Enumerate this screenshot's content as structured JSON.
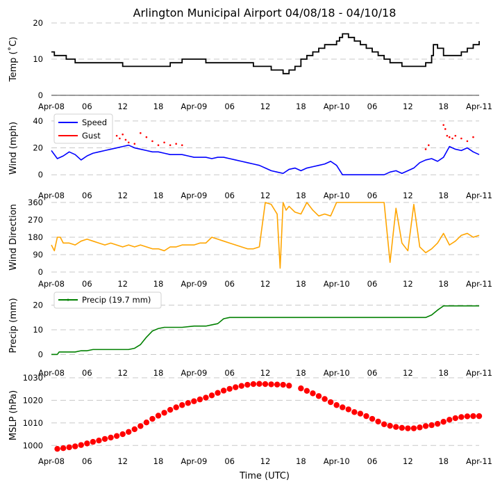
{
  "title": "Arlington Municipal Airport 04/08/18 - 04/10/18",
  "xlabel": "Time (UTC)",
  "chart_data": [
    {
      "id": "temp",
      "type": "line",
      "ylabel": "Temp ($^\\circ$C)",
      "ylabel_display": "Temp (˚C)",
      "ylim": [
        0,
        20
      ],
      "yticks": [
        0,
        10,
        20
      ],
      "xticks": [
        "Apr-08",
        "06",
        "12",
        "18",
        "Apr-09",
        "06",
        "12",
        "18",
        "Apr-10",
        "06",
        "12",
        "18",
        "Apr-11"
      ],
      "series": [
        {
          "name": "Temp",
          "color": "#000000",
          "style": "step",
          "x": [
            0,
            0.5,
            1,
            2,
            2.5,
            3,
            4,
            5,
            6,
            9,
            10,
            12,
            14,
            16,
            18,
            19,
            20,
            21,
            22,
            24,
            26,
            27,
            28,
            30,
            32,
            34,
            35,
            36,
            37,
            38,
            39,
            40,
            41,
            42,
            43,
            44,
            45,
            46,
            47,
            48,
            48.5,
            49,
            50,
            51,
            52,
            53,
            54,
            55,
            56,
            57,
            58,
            59,
            60,
            61,
            62,
            63,
            64,
            64.3,
            65,
            66,
            67,
            68,
            69,
            70,
            71,
            72
          ],
          "values": [
            12,
            11,
            11,
            11,
            10,
            10,
            9,
            9,
            9,
            9,
            9,
            8,
            8,
            8,
            8,
            8,
            9,
            9,
            10,
            10,
            9,
            9,
            9,
            9,
            9,
            8,
            8,
            8,
            7,
            7,
            6,
            7,
            8,
            10,
            11,
            12,
            13,
            14,
            14,
            15,
            16,
            17,
            16,
            15,
            14,
            13,
            12,
            11,
            10,
            9,
            9,
            8,
            8,
            8,
            8,
            9,
            11,
            14,
            13,
            11,
            11,
            11,
            12,
            13,
            14,
            15
          ]
        }
      ]
    },
    {
      "id": "wind",
      "type": "line",
      "ylabel": "Wind (mph)",
      "ylim": [
        -3,
        42
      ],
      "yticks": [
        0,
        20,
        40
      ],
      "xticks": [
        "Apr-08",
        "06",
        "12",
        "18",
        "Apr-09",
        "06",
        "12",
        "18",
        "Apr-10",
        "06",
        "12",
        "18",
        "Apr-11"
      ],
      "series": [
        {
          "name": "Speed",
          "color": "#0000ff",
          "style": "line",
          "x": [
            0,
            1,
            2,
            3,
            4,
            5,
            6,
            7,
            8,
            9,
            10,
            11,
            12,
            13,
            14,
            15,
            16,
            17,
            18,
            19,
            20,
            21,
            22,
            23,
            24,
            25,
            26,
            27,
            28,
            29,
            30,
            31,
            32,
            33,
            34,
            35,
            36,
            37,
            38,
            39,
            40,
            41,
            42,
            43,
            44,
            45,
            46,
            47,
            48,
            49,
            50,
            51,
            52,
            53,
            54,
            55,
            56,
            57,
            58,
            59,
            60,
            61,
            62,
            63,
            64,
            65,
            66,
            67,
            68,
            69,
            70,
            71,
            72
          ],
          "values": [
            18,
            12,
            14,
            17,
            15,
            11,
            14,
            16,
            17,
            18,
            19,
            20,
            21,
            22,
            20,
            19,
            18,
            17,
            17,
            16,
            15,
            15,
            15,
            14,
            13,
            13,
            13,
            12,
            13,
            13,
            12,
            11,
            10,
            9,
            8,
            7,
            5,
            3,
            2,
            1,
            4,
            5,
            3,
            5,
            6,
            7,
            8,
            10,
            7,
            0,
            0,
            0,
            0,
            0,
            0,
            0,
            0,
            2,
            3,
            1,
            3,
            5,
            9,
            11,
            12,
            10,
            13,
            21,
            19,
            18,
            20,
            17,
            15
          ]
        },
        {
          "name": "Gust",
          "color": "#ff0000",
          "style": "dots",
          "x": [
            11,
            11.5,
            12,
            12.5,
            13,
            14,
            15,
            16,
            17,
            18,
            19,
            20,
            21,
            22,
            63,
            63.5,
            66,
            66.3,
            66.6,
            67,
            67.5,
            68,
            69,
            70,
            71
          ],
          "values": [
            29,
            27,
            30,
            26,
            24,
            23,
            31,
            28,
            25,
            22,
            24,
            22,
            23,
            22,
            19,
            22,
            37,
            34,
            29,
            28,
            27,
            29,
            27,
            25,
            28
          ]
        }
      ],
      "legend": [
        "Speed",
        "Gust"
      ]
    },
    {
      "id": "dir",
      "type": "line",
      "ylabel": "Wind Direction",
      "ylim": [
        0,
        360
      ],
      "yticks": [
        0,
        90,
        180,
        270,
        360
      ],
      "xticks": [
        "Apr-08",
        "06",
        "12",
        "18",
        "Apr-09",
        "06",
        "12",
        "18",
        "Apr-10",
        "06",
        "12",
        "18",
        "Apr-11"
      ],
      "series": [
        {
          "name": "Direction",
          "color": "#ffa500",
          "style": "line",
          "x": [
            0,
            0.5,
            1,
            1.5,
            2,
            3,
            4,
            5,
            6,
            7,
            8,
            9,
            10,
            11,
            12,
            13,
            14,
            15,
            16,
            17,
            18,
            19,
            20,
            21,
            22,
            23,
            24,
            25,
            26,
            27,
            28,
            29,
            30,
            31,
            32,
            33,
            34,
            35,
            36,
            37,
            38,
            38.5,
            39,
            39.5,
            40,
            41,
            42,
            43,
            44,
            45,
            46,
            47,
            48,
            49,
            50,
            51,
            52,
            53,
            54,
            55,
            56,
            57,
            58,
            59,
            60,
            61,
            62,
            63,
            64,
            65,
            66,
            67,
            68,
            69,
            70,
            71,
            72
          ],
          "values": [
            140,
            110,
            180,
            180,
            150,
            150,
            140,
            160,
            170,
            160,
            150,
            140,
            150,
            140,
            130,
            140,
            130,
            140,
            130,
            120,
            120,
            110,
            130,
            130,
            140,
            140,
            140,
            150,
            150,
            180,
            170,
            160,
            150,
            140,
            130,
            120,
            120,
            130,
            360,
            350,
            300,
            20,
            360,
            320,
            340,
            310,
            300,
            360,
            320,
            290,
            300,
            290,
            360,
            360,
            360,
            360,
            360,
            360,
            360,
            360,
            360,
            50,
            330,
            150,
            110,
            350,
            130,
            100,
            120,
            150,
            200,
            140,
            160,
            190,
            200,
            180,
            190
          ]
        }
      ]
    },
    {
      "id": "precip",
      "type": "line",
      "ylabel": "Precip (mm)",
      "ylim": [
        -1,
        23
      ],
      "yticks": [
        0,
        10,
        20
      ],
      "xticks": [
        "Apr-08",
        "06",
        "12",
        "18",
        "Apr-09",
        "06",
        "12",
        "18",
        "Apr-10",
        "06",
        "12",
        "18",
        "Apr-11"
      ],
      "series": [
        {
          "name": "Precip (19.7 mm)",
          "color": "#008000",
          "style": "line",
          "x": [
            0,
            1,
            1.3,
            2,
            3,
            4,
            5,
            6,
            7,
            8,
            9,
            10,
            11,
            12,
            13,
            14,
            15,
            16,
            17,
            18,
            19,
            20,
            21,
            22,
            24,
            25,
            26,
            27,
            28,
            29,
            30,
            31,
            32,
            34,
            36,
            38,
            40,
            42,
            44,
            46,
            48,
            50,
            52,
            54,
            56,
            58,
            60,
            62,
            63,
            64,
            64.5,
            65,
            66,
            67,
            68,
            70,
            72
          ],
          "values": [
            0,
            0,
            1,
            1,
            1,
            1,
            1.5,
            1.5,
            2,
            2,
            2,
            2,
            2,
            2,
            2,
            2.5,
            4,
            7,
            9.5,
            10.5,
            11,
            11,
            11,
            11,
            11.5,
            11.5,
            11.5,
            12,
            12.5,
            14.5,
            15,
            15,
            15,
            15,
            15,
            15,
            15,
            15,
            15,
            15,
            15,
            15,
            15,
            15,
            15,
            15,
            15,
            15,
            15,
            16,
            17,
            18,
            19.7,
            19.7,
            19.7,
            19.7,
            19.7
          ]
        }
      ],
      "legend": [
        "Precip (19.7 mm)"
      ]
    },
    {
      "id": "mslp",
      "type": "scatter",
      "ylabel": "MSLP (hPa)",
      "ylim": [
        993,
        1030
      ],
      "yticks": [
        1000,
        1010,
        1020,
        1030
      ],
      "xticks": [
        "Apr-08",
        "06",
        "12",
        "18",
        "Apr-09",
        "06",
        "12",
        "18",
        "Apr-10",
        "06",
        "12",
        "18",
        "Apr-11"
      ],
      "series": [
        {
          "name": "MSLP",
          "color": "#ff0000",
          "style": "markers",
          "x": [
            1,
            2,
            3,
            4,
            5,
            6,
            7,
            8,
            9,
            10,
            11,
            12,
            13,
            14,
            15,
            16,
            17,
            18,
            19,
            20,
            21,
            22,
            23,
            24,
            25,
            26,
            27,
            28,
            29,
            30,
            31,
            32,
            33,
            34,
            35,
            36,
            37,
            38,
            39,
            40,
            42,
            43,
            44,
            45,
            46,
            47,
            48,
            49,
            50,
            51,
            52,
            53,
            54,
            55,
            56,
            57,
            58,
            59,
            60,
            61,
            62,
            63,
            64,
            65,
            66,
            67,
            68,
            69,
            70,
            71,
            72
          ],
          "values": [
            998.5,
            998.8,
            999.2,
            999.6,
            1000.2,
            1000.9,
            1001.6,
            1002.2,
            1002.9,
            1003.5,
            1004.2,
            1005.0,
            1006.0,
            1007.2,
            1008.6,
            1010.2,
            1011.8,
            1013.2,
            1014.5,
            1015.8,
            1016.9,
            1017.9,
            1018.8,
            1019.6,
            1020.4,
            1021.2,
            1022.2,
            1023.3,
            1024.3,
            1025.1,
            1025.8,
            1026.4,
            1026.9,
            1027.2,
            1027.3,
            1027.2,
            1027.1,
            1027.0,
            1026.9,
            1026.5,
            1025.3,
            1024.2,
            1023.1,
            1021.9,
            1020.6,
            1019.2,
            1017.9,
            1016.9,
            1016.0,
            1014.8,
            1014.1,
            1013.0,
            1011.8,
            1010.6,
            1009.4,
            1008.7,
            1008.2,
            1007.8,
            1007.6,
            1007.6,
            1008.0,
            1008.6,
            1009.0,
            1009.6,
            1010.5,
            1011.4,
            1012.1,
            1012.6,
            1012.9,
            1013.0,
            1013.0
          ]
        }
      ]
    }
  ]
}
